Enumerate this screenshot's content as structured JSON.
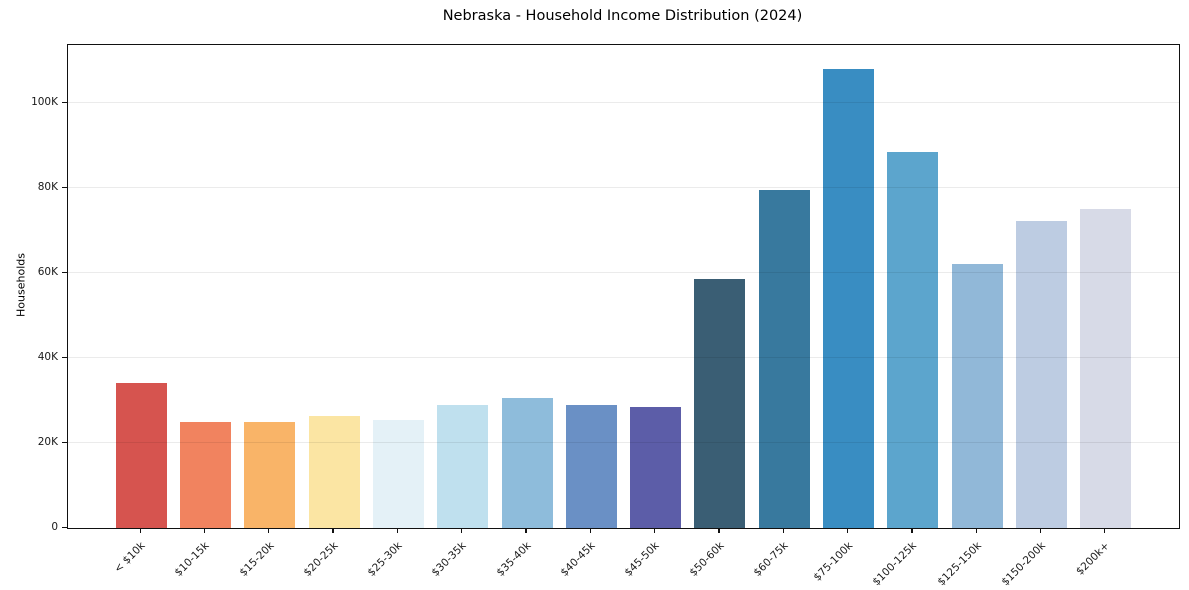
{
  "chart_data": {
    "type": "bar",
    "title": "Nebraska - Household Income Distribution (2024)",
    "xlabel": "",
    "ylabel": "Households",
    "categories": [
      "< $10k",
      "$10-15k",
      "$15-20k",
      "$20-25k",
      "$25-30k",
      "$30-35k",
      "$35-40k",
      "$40-45k",
      "$45-50k",
      "$50-60k",
      "$60-75k",
      "$75-100k",
      "$100-125k",
      "$125-150k",
      "$150-200k",
      "$200k+"
    ],
    "values": [
      34100,
      25000,
      24900,
      26400,
      25500,
      28900,
      30700,
      28900,
      28500,
      58500,
      79600,
      108100,
      88500,
      62100,
      72200,
      75000
    ],
    "bar_colors": [
      "#d6544f",
      "#f1835f",
      "#f9b468",
      "#fbe5a3",
      "#e4f1f7",
      "#bfe0ee",
      "#8ebcdb",
      "#6a90c5",
      "#5c5da8",
      "#3a5e74",
      "#38799e",
      "#398dc2",
      "#5ca5cd",
      "#91b8d8",
      "#bdcce2",
      "#d7dae7"
    ],
    "ylim": [
      0,
      113650
    ],
    "yticks": {
      "values": [
        0,
        20000,
        40000,
        60000,
        80000,
        100000
      ],
      "labels": [
        "0",
        "20K",
        "40K",
        "60K",
        "80K",
        "100K"
      ]
    },
    "grid": "horizontal-light-gray",
    "legend": "none"
  }
}
